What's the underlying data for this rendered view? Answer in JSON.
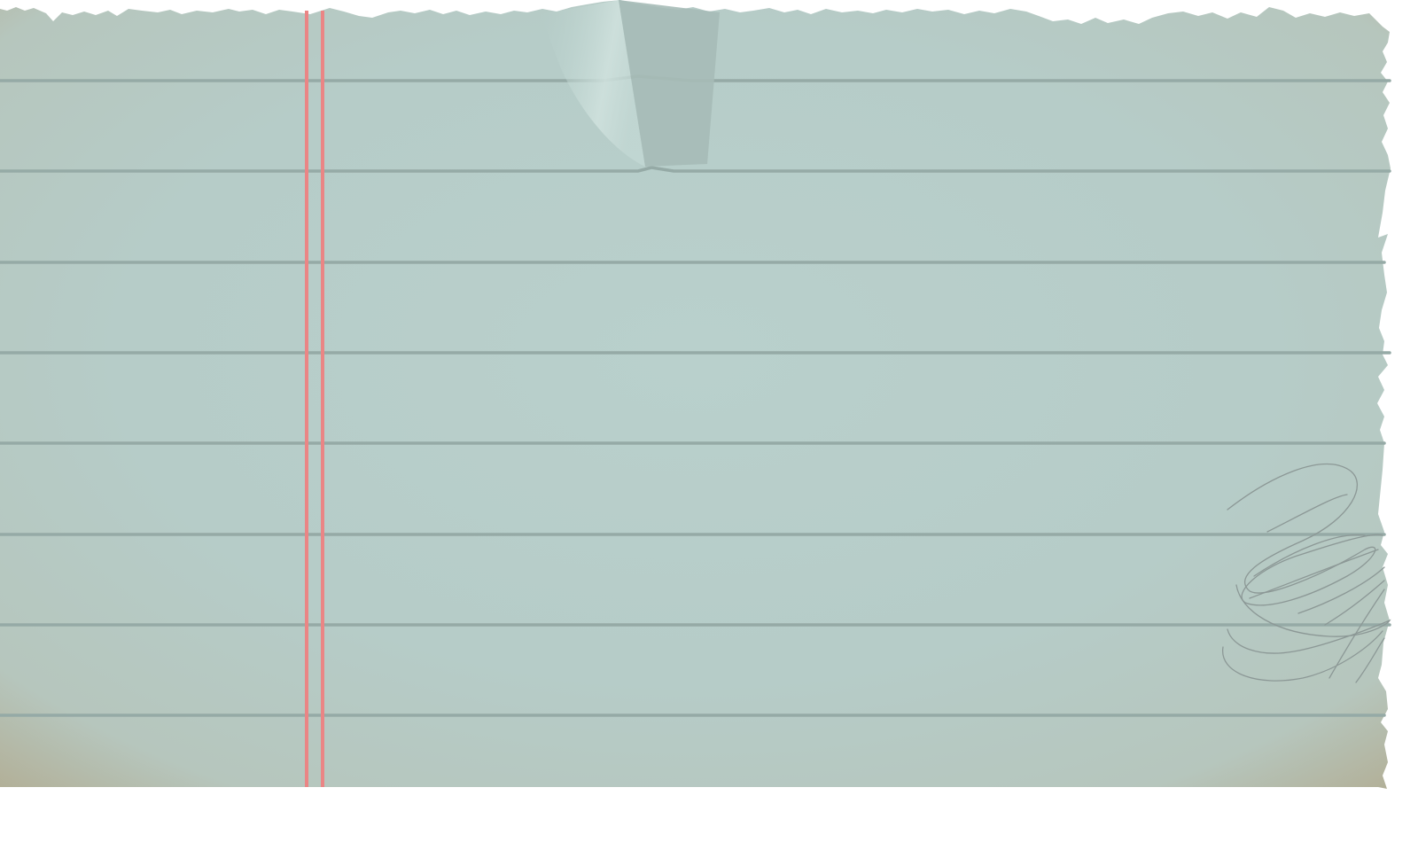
{
  "scene": {
    "subject": "torn-lined-notebook-paper",
    "paper_color": "#b7cdc9",
    "paper_edge_color": "#b1ae95",
    "rule_line_color": "#95aaa6",
    "margin_line_color": "#ea8585",
    "scribble_color": "#8c9896",
    "background_color": "#ffffff",
    "rule_line_count": 8,
    "margin_line_count": 2,
    "has_folded_corner": true,
    "has_scribble": true
  }
}
